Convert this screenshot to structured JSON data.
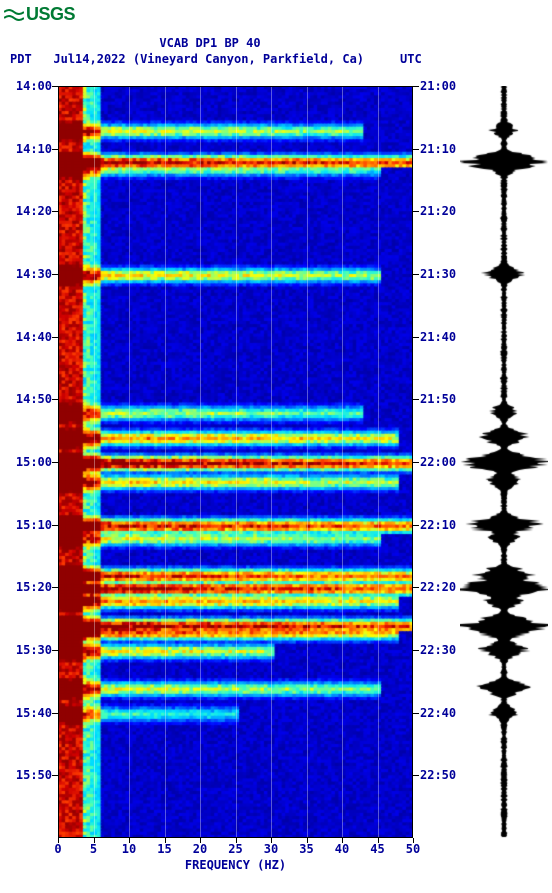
{
  "logo": {
    "text": "USGS",
    "color": "#007a33"
  },
  "title": "VCAB DP1 BP 40",
  "subtitle_date": "Jul14,2022 (Vineyard Canyon, Parkfield, Ca)",
  "left_tz": "PDT",
  "right_tz": "UTC",
  "xlabel": "FREQUENCY (HZ)",
  "text_color": "#000099",
  "spectrogram": {
    "type": "spectrogram",
    "xlim": [
      0,
      50
    ],
    "xtick_step": 5,
    "xticks": [
      0,
      5,
      10,
      15,
      20,
      25,
      30,
      35,
      40,
      45,
      50
    ],
    "left_time_start": "14:00",
    "right_time_start": "21:00",
    "y_minutes": 120,
    "left_ticks": [
      "14:00",
      "14:10",
      "14:20",
      "14:30",
      "14:40",
      "14:50",
      "15:00",
      "15:10",
      "15:20",
      "15:30",
      "15:40",
      "15:50"
    ],
    "right_ticks": [
      "21:00",
      "21:10",
      "21:20",
      "21:30",
      "21:40",
      "21:50",
      "22:00",
      "22:10",
      "22:20",
      "22:30",
      "22:40",
      "22:50"
    ],
    "colormap": [
      "#000080",
      "#0000c0",
      "#0000ff",
      "#0050ff",
      "#00a0ff",
      "#00e0ff",
      "#40ffc0",
      "#a0ff60",
      "#ffff00",
      "#ffc000",
      "#ff8000",
      "#ff4000",
      "#d00000",
      "#900000"
    ],
    "background_low": "#0000c0",
    "grid_color": "rgba(255,255,255,0.35)",
    "events_minutes_from_top": [
      {
        "t": 7,
        "intensity": 0.55,
        "width": 0.85
      },
      {
        "t": 12,
        "intensity": 0.95,
        "width": 1.0
      },
      {
        "t": 13,
        "intensity": 0.5,
        "width": 0.9
      },
      {
        "t": 30,
        "intensity": 0.6,
        "width": 0.9
      },
      {
        "t": 52,
        "intensity": 0.5,
        "width": 0.85
      },
      {
        "t": 56,
        "intensity": 0.7,
        "width": 0.95
      },
      {
        "t": 60,
        "intensity": 1.0,
        "width": 1.0
      },
      {
        "t": 63,
        "intensity": 0.6,
        "width": 0.95
      },
      {
        "t": 70,
        "intensity": 0.9,
        "width": 1.0
      },
      {
        "t": 72,
        "intensity": 0.55,
        "width": 0.9
      },
      {
        "t": 78,
        "intensity": 0.85,
        "width": 1.0
      },
      {
        "t": 80,
        "intensity": 0.95,
        "width": 1.0
      },
      {
        "t": 82,
        "intensity": 0.7,
        "width": 0.95
      },
      {
        "t": 86,
        "intensity": 1.0,
        "width": 1.0
      },
      {
        "t": 87,
        "intensity": 0.8,
        "width": 0.95
      },
      {
        "t": 90,
        "intensity": 0.6,
        "width": 0.6
      },
      {
        "t": 96,
        "intensity": 0.55,
        "width": 0.9
      },
      {
        "t": 100,
        "intensity": 0.4,
        "width": 0.5
      }
    ],
    "low_freq_band_width_hz": 3.5
  },
  "waveform": {
    "color": "#000000",
    "baseline_amp": 0.06,
    "events": [
      {
        "t": 7,
        "amp": 0.25
      },
      {
        "t": 12,
        "amp": 0.95
      },
      {
        "t": 13,
        "amp": 0.3
      },
      {
        "t": 30,
        "amp": 0.4
      },
      {
        "t": 52,
        "amp": 0.25
      },
      {
        "t": 56,
        "amp": 0.5
      },
      {
        "t": 60,
        "amp": 1.0
      },
      {
        "t": 63,
        "amp": 0.35
      },
      {
        "t": 70,
        "amp": 0.8
      },
      {
        "t": 72,
        "amp": 0.3
      },
      {
        "t": 78,
        "amp": 0.6
      },
      {
        "t": 80,
        "amp": 0.9
      },
      {
        "t": 82,
        "amp": 0.4
      },
      {
        "t": 86,
        "amp": 0.95
      },
      {
        "t": 87,
        "amp": 0.5
      },
      {
        "t": 90,
        "amp": 0.5
      },
      {
        "t": 96,
        "amp": 0.5
      },
      {
        "t": 100,
        "amp": 0.3
      }
    ]
  }
}
